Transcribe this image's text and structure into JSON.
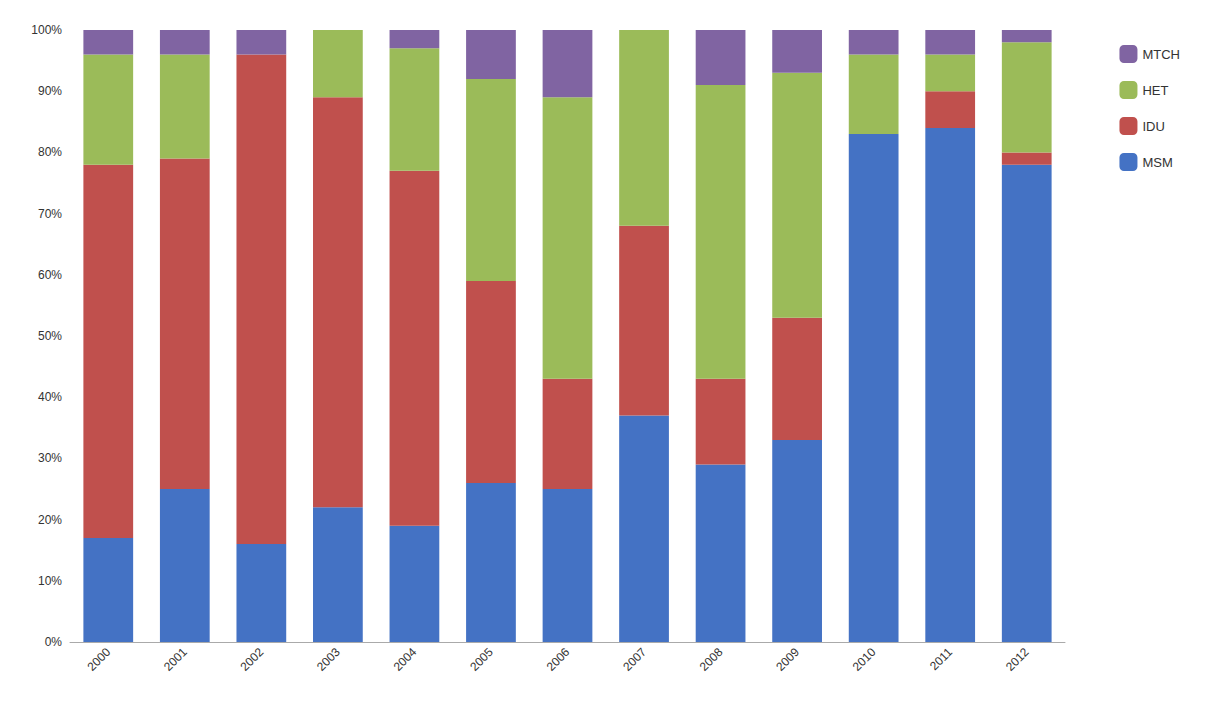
{
  "chart_data": {
    "type": "bar",
    "stacked": true,
    "grid": false,
    "legend": "right",
    "categories": [
      "2000",
      "2001",
      "2002",
      "2003",
      "2004",
      "2005",
      "2006",
      "2007",
      "2008",
      "2009",
      "2010",
      "2011",
      "2012"
    ],
    "series": [
      {
        "name": "MSM",
        "color": "#4472C4",
        "values": [
          17,
          25,
          16,
          22,
          19,
          26,
          25,
          37,
          29,
          33,
          83,
          84,
          78
        ]
      },
      {
        "name": "IDU",
        "color": "#C0504D",
        "values": [
          61,
          54,
          80,
          67,
          58,
          33,
          18,
          31,
          14,
          20,
          0,
          6,
          2
        ]
      },
      {
        "name": "HET",
        "color": "#9BBB59",
        "values": [
          18,
          17,
          0,
          11,
          20,
          33,
          46,
          32,
          48,
          40,
          13,
          6,
          18
        ]
      },
      {
        "name": "MTCH",
        "color": "#8064A2",
        "values": [
          4,
          4,
          4,
          0,
          3,
          8,
          11,
          0,
          9,
          7,
          4,
          4,
          2
        ]
      }
    ],
    "ylim": [
      0,
      100
    ],
    "yticks": [
      {
        "value": 0,
        "label": "0%"
      },
      {
        "value": 10,
        "label": "10%"
      },
      {
        "value": 20,
        "label": "20%"
      },
      {
        "value": 30,
        "label": "30%"
      },
      {
        "value": 40,
        "label": "40%"
      },
      {
        "value": 50,
        "label": "50%"
      },
      {
        "value": 60,
        "label": "60%"
      },
      {
        "value": 70,
        "label": "70%"
      },
      {
        "value": 80,
        "label": "80%"
      },
      {
        "value": 90,
        "label": "90%"
      },
      {
        "value": 100,
        "label": "100%"
      }
    ]
  }
}
